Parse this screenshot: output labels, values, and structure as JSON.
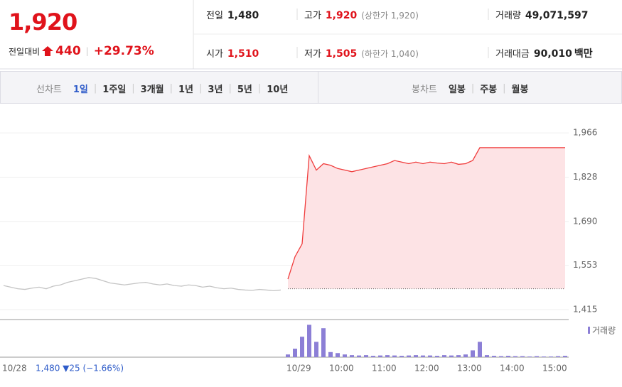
{
  "header": {
    "price": "1,920",
    "change_label": "전일대비",
    "change": "440",
    "change_pct": "+29.73%",
    "quotes": [
      {
        "label": "전일",
        "value": "1,480",
        "color": "#222222"
      },
      {
        "label": "고가",
        "value": "1,920",
        "note": "(상한가 1,920)",
        "color": "#e0131b"
      },
      {
        "label": "거래량",
        "value": "49,071,597",
        "color": "#222222"
      },
      {
        "label": "시가",
        "value": "1,510",
        "color": "#e0131b"
      },
      {
        "label": "저가",
        "value": "1,505",
        "note": "(하한가 1,040)",
        "color": "#e0131b"
      },
      {
        "label": "거래대금",
        "value": "90,010",
        "unit": "백만",
        "color": "#222222"
      }
    ]
  },
  "toolbar": {
    "line_label": "선차트",
    "line_periods": [
      "1일",
      "1주일",
      "3개월",
      "1년",
      "3년",
      "5년",
      "10년"
    ],
    "candle_label": "봉차트",
    "candle_periods": [
      "일봉",
      "주봉",
      "월봉"
    ]
  },
  "chart_data": [
    {
      "type": "line",
      "categories": [
        "10/28",
        null,
        null,
        null,
        null,
        null,
        null,
        null,
        null,
        null,
        null,
        null,
        null,
        null,
        null,
        null,
        null,
        null,
        null,
        null,
        null,
        null,
        null,
        null,
        null,
        null,
        null,
        null,
        null,
        null,
        null,
        null,
        null,
        null,
        null,
        null,
        null,
        null,
        null,
        null,
        "10/29",
        null,
        null,
        null,
        null,
        null,
        "10:00",
        null,
        null,
        null,
        null,
        null,
        "11:00",
        null,
        null,
        null,
        null,
        null,
        "12:00",
        null,
        null,
        null,
        null,
        null,
        "13:00",
        null,
        null,
        null,
        null,
        null,
        "14:00",
        null,
        null,
        null,
        null,
        null,
        "15:00",
        null,
        null,
        null
      ],
      "ylim": [
        1384,
        2004
      ],
      "yticks": [
        {
          "value": 1415,
          "label": "1,415"
        },
        {
          "value": 1553,
          "label": "1,553"
        },
        {
          "value": 1690,
          "label": "1,690"
        },
        {
          "value": 1828,
          "label": "1,828"
        },
        {
          "value": 1966,
          "label": "1,966"
        }
      ],
      "grid": true,
      "reference_line": 1480,
      "annotation": "1,480 ▼25 (−1.66%)",
      "series": [
        {
          "color": "#c4c4c4",
          "values": [
            1490,
            1485,
            1480,
            1478,
            1482,
            1485,
            1480,
            1488,
            1492,
            1500,
            1505,
            1510,
            1515,
            1512,
            1505,
            1498,
            1495,
            1492,
            1495,
            1498,
            1500,
            1495,
            1492,
            1495,
            1490,
            1488,
            1492,
            1490,
            1485,
            1488,
            1483,
            1480,
            1482,
            1478,
            1476,
            1475,
            1478,
            1476,
            1474,
            1476,
            null,
            null,
            null,
            null,
            null,
            null,
            null,
            null,
            null,
            null,
            null,
            null,
            null,
            null,
            null,
            null,
            null,
            null,
            null,
            null,
            null,
            null,
            null,
            null,
            null,
            null,
            null,
            null,
            null,
            null,
            null,
            null,
            null,
            null,
            null,
            null,
            null,
            null,
            null,
            null
          ]
        },
        {
          "color": "#f03c3c",
          "fill": "#fde3e5",
          "values": [
            null,
            null,
            null,
            null,
            null,
            null,
            null,
            null,
            null,
            null,
            null,
            null,
            null,
            null,
            null,
            null,
            null,
            null,
            null,
            null,
            null,
            null,
            null,
            null,
            null,
            null,
            null,
            null,
            null,
            null,
            null,
            null,
            null,
            null,
            null,
            null,
            null,
            null,
            null,
            null,
            1510,
            1580,
            1620,
            1895,
            1850,
            1870,
            1865,
            1855,
            1850,
            1845,
            1850,
            1855,
            1860,
            1865,
            1870,
            1880,
            1875,
            1870,
            1875,
            1870,
            1875,
            1872,
            1870,
            1875,
            1868,
            1870,
            1880,
            1920,
            1920,
            1920,
            1920,
            1920,
            1920,
            1920,
            1920,
            1920,
            1920,
            1920,
            1920,
            1920
          ]
        }
      ]
    },
    {
      "type": "bar",
      "ylim": [
        0,
        100
      ],
      "legend": "upper right",
      "series": [
        {
          "name": "거래량",
          "color": "#8c7fd6",
          "values": [
            null,
            null,
            null,
            null,
            null,
            null,
            null,
            null,
            null,
            null,
            null,
            null,
            null,
            null,
            null,
            null,
            null,
            null,
            null,
            null,
            null,
            null,
            null,
            null,
            null,
            null,
            null,
            null,
            null,
            null,
            null,
            null,
            null,
            null,
            null,
            null,
            null,
            null,
            null,
            null,
            8,
            25,
            60,
            95,
            45,
            85,
            15,
            12,
            8,
            6,
            5,
            6,
            4,
            5,
            6,
            5,
            4,
            5,
            6,
            5,
            5,
            4,
            6,
            5,
            6,
            8,
            20,
            45,
            6,
            4,
            3,
            4,
            3,
            3,
            2,
            3,
            2,
            2,
            3,
            4
          ]
        }
      ]
    }
  ]
}
